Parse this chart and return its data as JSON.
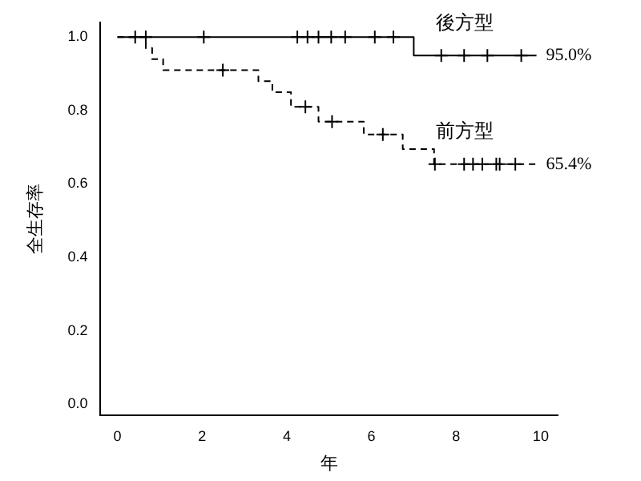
{
  "chart_data": {
    "type": "step",
    "xlabel": "年",
    "ylabel": "全生存率",
    "xlim": [
      -0.4,
      10.4
    ],
    "xticks": [
      0,
      2,
      4,
      6,
      8,
      10
    ],
    "ylim": [
      -0.03,
      1.04
    ],
    "yticks": [
      {
        "value": 0,
        "label": "0.0"
      },
      0.2,
      0.4,
      0.6,
      0.8,
      {
        "value": 1,
        "label": "1.0"
      }
    ],
    "grid": false,
    "legend": false,
    "series": [
      {
        "name": "後方型",
        "color": "#000000",
        "line_style": "solid",
        "marker": "none",
        "x": [
          0,
          7.0,
          9.9
        ],
        "values": [
          1.0,
          0.95,
          0.95
        ]
      },
      {
        "type": "scatter",
        "color": "#000000",
        "marker": "cross",
        "x": [
          0.42,
          0.67,
          2.04,
          4.25,
          4.49,
          4.75,
          5.05,
          5.38,
          6.08,
          6.52,
          7.65,
          8.19,
          8.74,
          9.54
        ],
        "values": [
          1,
          1,
          1,
          1,
          1,
          1,
          1,
          1,
          1,
          1,
          0.95,
          0.95,
          0.95,
          0.95
        ]
      },
      {
        "name": "前方型",
        "color": "#000000",
        "line_style": "dashed",
        "marker": "none",
        "x": [
          0,
          0.67,
          0.82,
          1.08,
          3.33,
          3.66,
          4.1,
          4.75,
          5.82,
          6.74,
          7.48,
          9.9
        ],
        "values": [
          1.0,
          0.97,
          0.94,
          0.91,
          0.88,
          0.85,
          0.81,
          0.77,
          0.735,
          0.695,
          0.654,
          0.654
        ]
      },
      {
        "type": "scatter",
        "color": "#000000",
        "marker": "cross",
        "x": [
          2.49,
          4.44,
          5.07,
          6.27,
          7.5,
          8.19,
          8.4,
          8.62,
          8.95,
          9.03,
          9.4
        ],
        "values": [
          0.91,
          0.81,
          0.77,
          0.735,
          0.654,
          0.654,
          0.654,
          0.654,
          0.654,
          0.654,
          0.654
        ]
      }
    ],
    "annotations": [
      {
        "text": "95.0%",
        "x": 9.9,
        "y": 0.95
      },
      {
        "text": "65.4%",
        "x": 9.9,
        "y": 0.654
      }
    ]
  }
}
